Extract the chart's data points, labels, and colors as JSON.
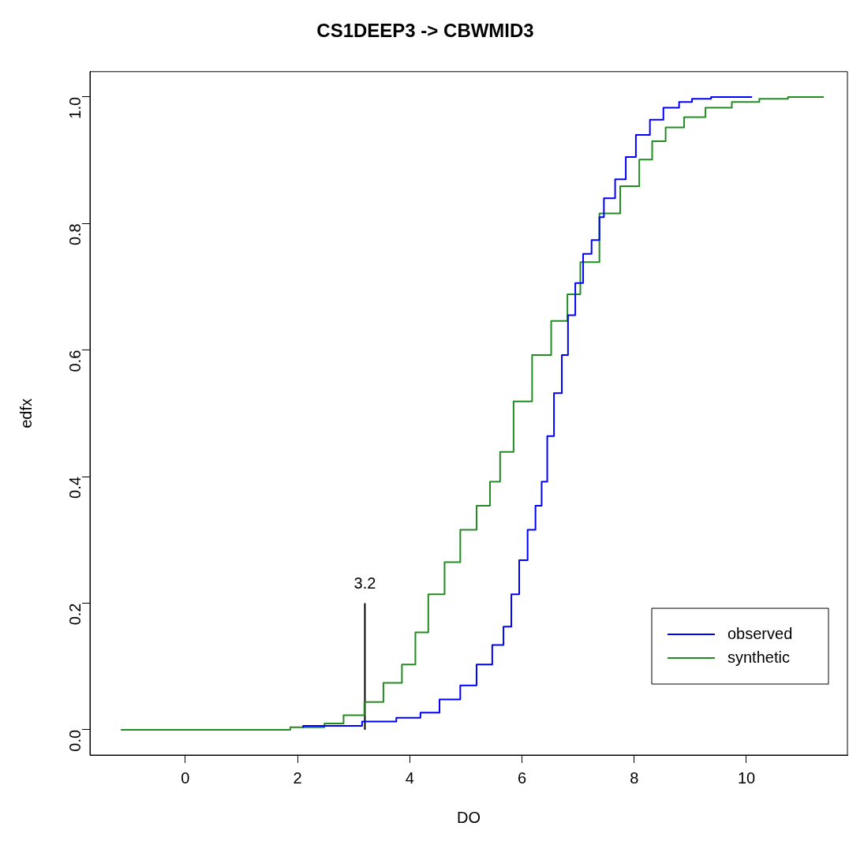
{
  "chart_data": {
    "type": "step",
    "title": "CS1DEEP3 -> CBWMID3",
    "xlabel": "DO",
    "ylabel": "edfx",
    "xlim": [
      -1.7,
      11.8
    ],
    "ylim": [
      -0.04,
      1.04
    ],
    "xticks": [
      0,
      2,
      4,
      6,
      8,
      10
    ],
    "yticks": [
      {
        "value": 0,
        "label": "0.0"
      },
      {
        "value": 0.2,
        "label": "0.2"
      },
      {
        "value": 0.4,
        "label": "0.4"
      },
      {
        "value": 0.6,
        "label": "0.6"
      },
      {
        "value": 0.8,
        "label": "0.8"
      },
      {
        "value": 1,
        "label": "1.0"
      }
    ],
    "grid": false,
    "legend": "bottom right",
    "marker": "none",
    "annotations": [
      {
        "text": "3.2",
        "x": 3.2,
        "y": 0.2
      }
    ],
    "series": [
      {
        "name": "observed",
        "color": "#0000ff",
        "x": [
          2.1,
          3.15,
          3.76,
          4.19,
          4.53,
          4.9,
          5.19,
          5.47,
          5.67,
          5.81,
          5.95,
          6.1,
          6.24,
          6.35,
          6.45,
          6.57,
          6.71,
          6.82,
          6.95,
          7.09,
          7.24,
          7.38,
          7.46,
          7.66,
          7.85,
          8.03,
          8.28,
          8.52,
          8.8,
          9.03,
          9.37,
          10.1
        ],
        "values": [
          0.003,
          0.006,
          0.013,
          0.019,
          0.027,
          0.048,
          0.07,
          0.103,
          0.134,
          0.163,
          0.214,
          0.268,
          0.316,
          0.354,
          0.392,
          0.464,
          0.532,
          0.592,
          0.655,
          0.706,
          0.752,
          0.774,
          0.81,
          0.84,
          0.87,
          0.905,
          0.94,
          0.964,
          0.983,
          0.992,
          0.997,
          1.0
        ]
      },
      {
        "name": "synthetic",
        "color": "#228b22",
        "x": [
          -1.15,
          1.87,
          2.48,
          2.82,
          3.19,
          3.53,
          3.86,
          4.1,
          4.33,
          4.62,
          4.9,
          5.19,
          5.43,
          5.61,
          5.85,
          6.18,
          6.52,
          6.81,
          7.04,
          7.38,
          7.75,
          8.09,
          8.32,
          8.56,
          8.89,
          9.27,
          9.74,
          10.23,
          10.74,
          11.38
        ],
        "values": [
          0,
          0,
          0.004,
          0.01,
          0.023,
          0.044,
          0.074,
          0.103,
          0.154,
          0.214,
          0.265,
          0.316,
          0.354,
          0.392,
          0.439,
          0.519,
          0.592,
          0.646,
          0.688,
          0.739,
          0.816,
          0.859,
          0.901,
          0.93,
          0.952,
          0.968,
          0.983,
          0.992,
          0.997,
          1.0
        ]
      },
      {
        "type": "line",
        "color": "#000000",
        "x": [
          3.2,
          3.2
        ],
        "values": [
          0,
          0.2
        ]
      }
    ]
  }
}
